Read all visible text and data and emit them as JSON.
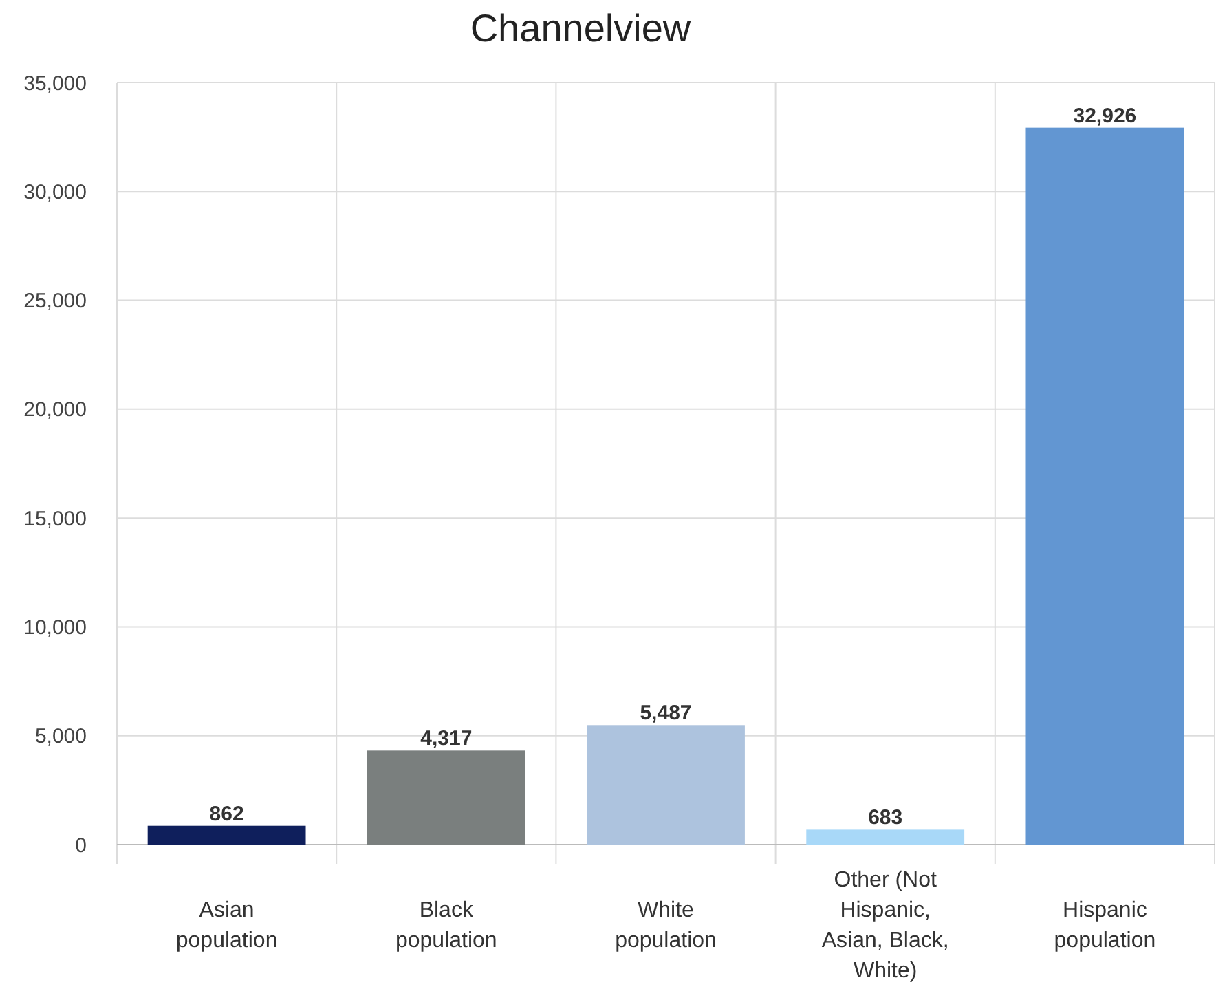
{
  "chart_data": {
    "type": "bar",
    "title": "Channelview",
    "categories": [
      "Asian population",
      "Black population",
      "White population",
      "Other (Not Hispanic, Asian, Black, White)",
      "Hispanic population"
    ],
    "values": [
      862,
      4317,
      5487,
      683,
      32926
    ],
    "colors": [
      "#0f1f5c",
      "#7a7f7e",
      "#adc3de",
      "#a8d8f8",
      "#6296d2"
    ],
    "ylim": [
      0,
      35000
    ],
    "yticks": [
      {
        "value": 0,
        "label": "0"
      },
      {
        "value": 5000,
        "label": "5,000"
      },
      {
        "value": 10000,
        "label": "10,000"
      },
      {
        "value": 15000,
        "label": "15,000"
      },
      {
        "value": 20000,
        "label": "20,000"
      },
      {
        "value": 25000,
        "label": "25,000"
      },
      {
        "value": 30000,
        "label": "30,000"
      },
      {
        "value": 35000,
        "label": "35,000"
      }
    ],
    "value_labels": [
      "862",
      "4,317",
      "5,487",
      "683",
      "32,926"
    ],
    "grid": true
  }
}
